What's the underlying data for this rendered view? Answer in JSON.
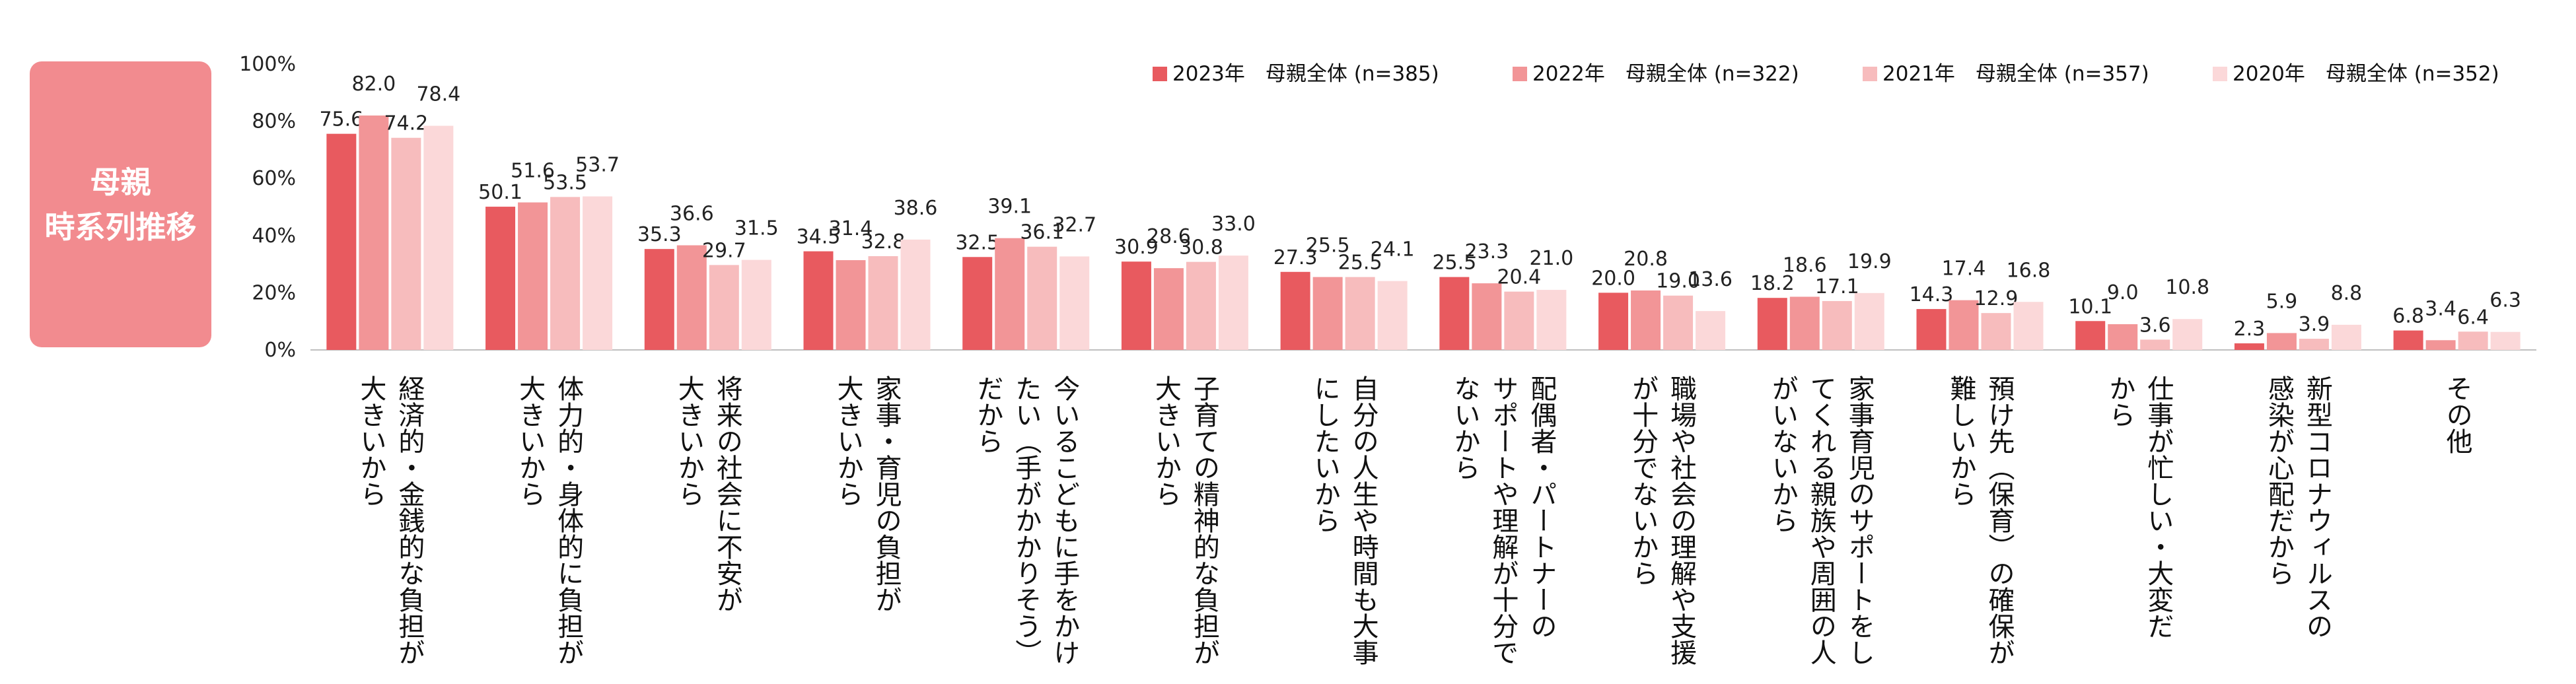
{
  "side_label": {
    "line1": "母親",
    "line2": "時系列推移"
  },
  "chart_data": {
    "type": "bar",
    "title": "",
    "xlabel": "",
    "ylabel": "",
    "ylim": [
      0,
      100
    ],
    "yticks": [
      "0%",
      "20%",
      "40%",
      "60%",
      "80%",
      "100%"
    ],
    "legend_position": "top-right",
    "categories": [
      [
        "経済的・金銭的な負担が",
        "大きいから"
      ],
      [
        "体力的・身体的に負担が",
        "大きいから"
      ],
      [
        "将来の社会に不安が",
        "大きいから"
      ],
      [
        "家事・育児の負担が",
        "大きいから"
      ],
      [
        "今いるこどもに手をかけ",
        "たい（手がかかりそう）",
        "だから"
      ],
      [
        "子育ての精神的な負担が",
        "大きいから"
      ],
      [
        "自分の人生や時間も大事",
        "にしたいから"
      ],
      [
        "配偶者・パートナーの",
        "サポートや理解が十分で",
        "ないから"
      ],
      [
        "職場や社会の理解や支援",
        "が十分でないから"
      ],
      [
        "家事育児のサポートをし",
        "てくれる親族や周囲の人",
        "がいないから"
      ],
      [
        "預け先（保育）の確保が",
        "難しいから"
      ],
      [
        "仕事が忙しい・大変だ",
        "から"
      ],
      [
        "新型コロナウィルスの",
        "感染が心配だから"
      ],
      [
        "その他"
      ]
    ],
    "series": [
      {
        "name": "2023年　母親全体 (n=385)",
        "color": "#e85a5f",
        "values": [
          75.6,
          50.1,
          35.3,
          34.5,
          32.5,
          30.9,
          27.3,
          25.5,
          20.0,
          18.2,
          14.3,
          10.1,
          2.3,
          6.8
        ]
      },
      {
        "name": "2022年　母親全体 (n=322)",
        "color": "#f29597",
        "values": [
          82.0,
          51.6,
          36.6,
          31.4,
          39.1,
          28.6,
          25.5,
          23.3,
          20.8,
          18.6,
          17.4,
          9.0,
          5.9,
          3.4
        ]
      },
      {
        "name": "2021年　母親全体 (n=357)",
        "color": "#f7bcbd",
        "values": [
          74.2,
          53.5,
          29.7,
          32.8,
          36.1,
          30.8,
          25.5,
          20.4,
          19.0,
          17.1,
          12.9,
          3.6,
          3.9,
          6.4
        ]
      },
      {
        "name": "2020年　母親全体 (n=352)",
        "color": "#fbd8d9",
        "values": [
          78.4,
          53.7,
          31.5,
          38.6,
          32.7,
          33.0,
          24.1,
          21.0,
          13.6,
          19.9,
          16.8,
          10.8,
          8.8,
          6.3
        ]
      }
    ]
  }
}
